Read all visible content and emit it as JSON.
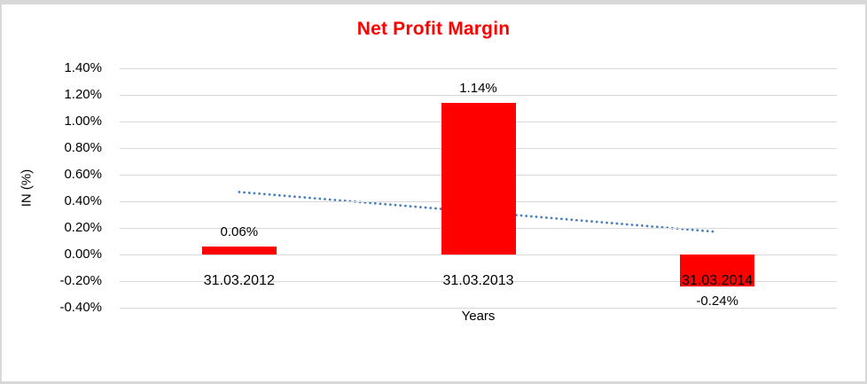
{
  "window": {
    "background": "#FFFFFF",
    "frame_border_color": "#D8D8D8"
  },
  "chart_data": {
    "type": "bar",
    "title": "Net Profit Margin",
    "title_color": "#FF0000",
    "xlabel": "Years",
    "ylabel": "IN (%)",
    "categories": [
      "31.03.2012",
      "31.03.2013",
      "31.03.2014"
    ],
    "values": [
      0.06,
      1.14,
      -0.24
    ],
    "data_labels": [
      "0.06%",
      "1.14%",
      "-0.24%"
    ],
    "bar_color": "#FF0000",
    "ylim": [
      -0.4,
      1.4
    ],
    "ytick_step": 0.2,
    "ytick_labels": [
      "1.40%",
      "1.20%",
      "1.00%",
      "0.80%",
      "0.60%",
      "0.40%",
      "0.20%",
      "0.00%",
      "-0.20%",
      "-0.40%"
    ],
    "grid": "horizontal-only",
    "gridline_color": "#D9D9D9",
    "legend": "none",
    "trendline": {
      "type": "linear",
      "style": "dotted",
      "color": "#4A7EBB",
      "start_value": 0.47,
      "end_value": 0.17
    }
  }
}
